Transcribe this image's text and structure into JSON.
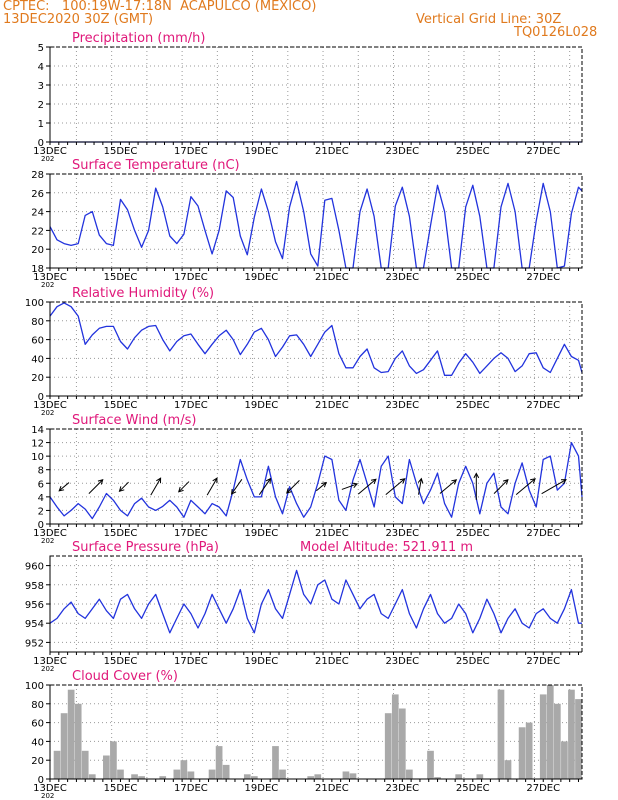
{
  "header": {
    "line1": "CPTEC:   100:19W-17:18N  ACAPULCO (MEXICO)",
    "line2": "13DEC2020 30Z (GMT)",
    "grid_note": "Vertical Grid Line: 30Z",
    "run_code": "TQ0126L028"
  },
  "colors": {
    "header": "#e07a1e",
    "title": "#e0187a",
    "line": "#2233dd",
    "cloud": "#a9a9a9",
    "arrow": "#000000"
  },
  "x_axis": {
    "tick_labels": [
      "13DEC",
      "15DEC",
      "17DEC",
      "19DEC",
      "21DEC",
      "23DEC",
      "25DEC",
      "27DEC"
    ],
    "clipped_label": "202"
  },
  "chart_data": [
    {
      "type": "line",
      "title": "Precipitation (mm/h)",
      "ylim": [
        0,
        5
      ],
      "yticks": [
        "0",
        "1",
        "2",
        "3",
        "4",
        "5"
      ],
      "x_days": [
        0,
        15.1
      ],
      "values": [
        0,
        0
      ]
    },
    {
      "type": "line",
      "title": "Surface Temperature (nC)",
      "ylim": [
        18,
        28
      ],
      "yticks": [
        "18",
        "20",
        "22",
        "24",
        "26",
        "28"
      ],
      "x_days": [
        0,
        0.2,
        0.4,
        0.6,
        0.8,
        1.0,
        1.2,
        1.4,
        1.6,
        1.8,
        2.0,
        2.2,
        2.4,
        2.6,
        2.8,
        3.0,
        3.2,
        3.4,
        3.6,
        3.8,
        4.0,
        4.2,
        4.4,
        4.6,
        4.8,
        5.0,
        5.2,
        5.4,
        5.6,
        5.8,
        6.0,
        6.2,
        6.4,
        6.6,
        6.8,
        7.0,
        7.2,
        7.4,
        7.6,
        7.8,
        8.0,
        8.2,
        8.4,
        8.6,
        8.8,
        9.0,
        9.2,
        9.4,
        9.6,
        9.8,
        10.0,
        10.2,
        10.4,
        10.6,
        10.8,
        11.0,
        11.2,
        11.4,
        11.6,
        11.8,
        12.0,
        12.2,
        12.4,
        12.6,
        12.8,
        13.0,
        13.2,
        13.4,
        13.6,
        13.8,
        14.0,
        14.2,
        14.4,
        14.6,
        14.8,
        15.0,
        15.1
      ],
      "values": [
        22.4,
        21.0,
        20.6,
        20.4,
        20.6,
        23.6,
        24.0,
        21.5,
        20.6,
        20.4,
        25.3,
        24.2,
        22.0,
        20.2,
        22.0,
        26.5,
        24.5,
        21.4,
        20.6,
        21.6,
        25.6,
        24.6,
        22.0,
        19.5,
        22.0,
        26.2,
        25.5,
        21.4,
        19.4,
        23.4,
        26.4,
        24.0,
        20.8,
        19.0,
        24.5,
        27.2,
        24.0,
        19.5,
        18.2,
        25.2,
        25.4,
        22.0,
        18.0,
        18.0,
        24.0,
        26.4,
        23.5,
        18.0,
        18.0,
        24.6,
        26.6,
        23.5,
        18.0,
        18.0,
        22.5,
        26.8,
        24.0,
        18.0,
        18.0,
        24.5,
        26.8,
        23.5,
        18.0,
        18.0,
        24.5,
        27.0,
        24.0,
        18.0,
        18.0,
        23.0,
        27.0,
        24.0,
        18.0,
        18.2,
        23.8,
        26.6,
        26.2
      ]
    },
    {
      "type": "line",
      "title": "Relative Humidity (%)",
      "ylim": [
        0,
        100
      ],
      "yticks": [
        "0",
        "20",
        "40",
        "60",
        "80",
        "100"
      ],
      "x_days": [
        0,
        0.2,
        0.4,
        0.6,
        0.8,
        1.0,
        1.2,
        1.4,
        1.6,
        1.8,
        2.0,
        2.2,
        2.4,
        2.6,
        2.8,
        3.0,
        3.2,
        3.4,
        3.6,
        3.8,
        4.0,
        4.2,
        4.4,
        4.6,
        4.8,
        5.0,
        5.2,
        5.4,
        5.6,
        5.8,
        6.0,
        6.2,
        6.4,
        6.6,
        6.8,
        7.0,
        7.2,
        7.4,
        7.6,
        7.8,
        8.0,
        8.2,
        8.4,
        8.6,
        8.8,
        9.0,
        9.2,
        9.4,
        9.6,
        9.8,
        10.0,
        10.2,
        10.4,
        10.6,
        10.8,
        11.0,
        11.2,
        11.4,
        11.6,
        11.8,
        12.0,
        12.2,
        12.4,
        12.6,
        12.8,
        13.0,
        13.2,
        13.4,
        13.6,
        13.8,
        14.0,
        14.2,
        14.4,
        14.6,
        14.8,
        15.0,
        15.1
      ],
      "values": [
        85,
        95,
        99,
        95,
        85,
        55,
        65,
        72,
        74,
        74,
        58,
        50,
        62,
        70,
        74,
        75,
        60,
        48,
        58,
        64,
        66,
        55,
        45,
        55,
        64,
        70,
        60,
        44,
        55,
        68,
        72,
        60,
        42,
        52,
        64,
        65,
        55,
        42,
        55,
        68,
        75,
        45,
        30,
        30,
        42,
        50,
        30,
        25,
        26,
        40,
        48,
        32,
        24,
        28,
        38,
        48,
        22,
        22,
        35,
        45,
        36,
        24,
        32,
        40,
        46,
        40,
        26,
        32,
        45,
        46,
        30,
        25,
        40,
        55,
        42,
        38,
        25
      ]
    },
    {
      "type": "line",
      "title": "Surface Wind (m/s)",
      "ylim": [
        0,
        14
      ],
      "yticks": [
        "0",
        "2",
        "4",
        "6",
        "8",
        "10",
        "12",
        "14"
      ],
      "x_days": [
        0,
        0.2,
        0.4,
        0.6,
        0.8,
        1.0,
        1.2,
        1.4,
        1.6,
        1.8,
        2.0,
        2.2,
        2.4,
        2.6,
        2.8,
        3.0,
        3.2,
        3.4,
        3.6,
        3.8,
        4.0,
        4.2,
        4.4,
        4.6,
        4.8,
        5.0,
        5.2,
        5.4,
        5.6,
        5.8,
        6.0,
        6.2,
        6.4,
        6.6,
        6.8,
        7.0,
        7.2,
        7.4,
        7.6,
        7.8,
        8.0,
        8.2,
        8.4,
        8.6,
        8.8,
        9.0,
        9.2,
        9.4,
        9.6,
        9.8,
        10.0,
        10.2,
        10.4,
        10.6,
        10.8,
        11.0,
        11.2,
        11.4,
        11.6,
        11.8,
        12.0,
        12.2,
        12.4,
        12.6,
        12.8,
        13.0,
        13.2,
        13.4,
        13.6,
        13.8,
        14.0,
        14.2,
        14.4,
        14.6,
        14.8,
        15.0,
        15.1
      ],
      "values": [
        4.0,
        2.5,
        1.2,
        2.0,
        3.0,
        2.2,
        0.8,
        2.5,
        4.5,
        3.5,
        2.0,
        1.2,
        3.0,
        3.8,
        2.5,
        2.0,
        2.6,
        3.5,
        2.5,
        1.0,
        3.5,
        2.5,
        1.5,
        3.0,
        2.5,
        1.2,
        5.0,
        9.5,
        6.5,
        4.0,
        4.0,
        8.5,
        4.0,
        1.5,
        5.5,
        3.0,
        1.0,
        2.5,
        6.0,
        10.0,
        9.5,
        3.5,
        2.0,
        6.5,
        9.5,
        6.0,
        2.5,
        8.5,
        10.0,
        4.0,
        3.0,
        9.5,
        6.0,
        3.0,
        5.0,
        7.5,
        3.0,
        1.0,
        6.0,
        8.5,
        6.0,
        1.5,
        6.0,
        7.5,
        2.5,
        1.5,
        6.0,
        9.0,
        5.0,
        2.5,
        9.5,
        10.0,
        5.0,
        6.0,
        12.0,
        10.0,
        4.0
      ],
      "arrows_days": [
        0.4,
        1.3,
        2.1,
        3.0,
        3.8,
        4.6,
        5.3,
        6.1,
        6.9,
        7.7,
        8.5,
        9.0,
        9.8,
        10.5,
        11.3,
        12.1,
        12.8,
        13.5,
        14.3
      ],
      "arrows_dir_deg": [
        220,
        45,
        225,
        60,
        225,
        60,
        235,
        55,
        225,
        40,
        20,
        40,
        40,
        80,
        40,
        90,
        45,
        40,
        30
      ],
      "arrows_speed": [
        2.0,
        4.0,
        2.0,
        4.0,
        2.5,
        4.0,
        3.5,
        4.0,
        3.5,
        2.0,
        3.0,
        5.0,
        5.5,
        3.0,
        4.5,
        6.0,
        4.0,
        5.5,
        6.5
      ]
    },
    {
      "type": "line",
      "title": "Surface Pressure (hPa)",
      "note": "Model Altitude: 521.911  m",
      "ylim": [
        951,
        961
      ],
      "yticks": [
        "952",
        "954",
        "956",
        "958",
        "960"
      ],
      "x_days": [
        0,
        0.2,
        0.4,
        0.6,
        0.8,
        1.0,
        1.2,
        1.4,
        1.6,
        1.8,
        2.0,
        2.2,
        2.4,
        2.6,
        2.8,
        3.0,
        3.2,
        3.4,
        3.6,
        3.8,
        4.0,
        4.2,
        4.4,
        4.6,
        4.8,
        5.0,
        5.2,
        5.4,
        5.6,
        5.8,
        6.0,
        6.2,
        6.4,
        6.6,
        6.8,
        7.0,
        7.2,
        7.4,
        7.6,
        7.8,
        8.0,
        8.2,
        8.4,
        8.6,
        8.8,
        9.0,
        9.2,
        9.4,
        9.6,
        9.8,
        10.0,
        10.2,
        10.4,
        10.6,
        10.8,
        11.0,
        11.2,
        11.4,
        11.6,
        11.8,
        12.0,
        12.2,
        12.4,
        12.6,
        12.8,
        13.0,
        13.2,
        13.4,
        13.6,
        13.8,
        14.0,
        14.2,
        14.4,
        14.6,
        14.8,
        15.0,
        15.1
      ],
      "values": [
        954.0,
        954.5,
        955.5,
        956.2,
        955.0,
        954.5,
        955.5,
        956.5,
        955.3,
        954.5,
        956.5,
        957.0,
        955.5,
        954.5,
        956.0,
        957.0,
        955.0,
        953.0,
        954.5,
        956.0,
        955.0,
        953.5,
        955.0,
        957.0,
        955.5,
        954.0,
        955.5,
        957.5,
        954.5,
        953.0,
        956.0,
        957.5,
        955.5,
        954.5,
        957.0,
        959.5,
        957.0,
        956.0,
        958.0,
        958.5,
        956.5,
        956.0,
        958.5,
        957.0,
        955.5,
        956.5,
        957.0,
        955.0,
        954.5,
        956.0,
        957.5,
        955.0,
        953.5,
        955.5,
        957.0,
        955.0,
        954.0,
        954.5,
        956.0,
        955.0,
        953.0,
        954.5,
        956.5,
        955.0,
        953.0,
        954.5,
        955.5,
        954.0,
        953.5,
        955.0,
        955.5,
        954.5,
        954.0,
        955.5,
        957.5,
        954.0,
        954.0
      ]
    },
    {
      "type": "area",
      "title": "Cloud Cover (%)",
      "ylim": [
        0,
        100
      ],
      "yticks": [
        "0",
        "20",
        "40",
        "60",
        "80",
        "100"
      ],
      "x_days": [
        0,
        0.2,
        0.4,
        0.6,
        0.8,
        1.0,
        1.2,
        1.4,
        1.6,
        1.8,
        2.0,
        2.2,
        2.4,
        2.6,
        2.8,
        3.0,
        3.2,
        3.4,
        3.6,
        3.8,
        4.0,
        4.2,
        4.4,
        4.6,
        4.8,
        5.0,
        5.2,
        5.4,
        5.6,
        5.8,
        6.0,
        6.2,
        6.4,
        6.6,
        6.8,
        7.0,
        7.2,
        7.4,
        7.6,
        7.8,
        8.0,
        8.2,
        8.4,
        8.6,
        8.8,
        9.0,
        9.2,
        9.4,
        9.6,
        9.8,
        10.0,
        10.2,
        10.4,
        10.6,
        10.8,
        11.0,
        11.2,
        11.4,
        11.6,
        11.8,
        12.0,
        12.2,
        12.4,
        12.6,
        12.8,
        13.0,
        13.2,
        13.4,
        13.6,
        13.8,
        14.0,
        14.2,
        14.4,
        14.6,
        14.8,
        15.0,
        15.1
      ],
      "values": [
        0,
        30,
        70,
        95,
        80,
        30,
        5,
        0,
        25,
        40,
        10,
        0,
        5,
        3,
        0,
        0,
        3,
        0,
        10,
        20,
        8,
        0,
        0,
        10,
        35,
        15,
        0,
        0,
        5,
        3,
        0,
        0,
        35,
        10,
        0,
        0,
        0,
        3,
        5,
        0,
        0,
        0,
        8,
        6,
        0,
        0,
        0,
        0,
        70,
        90,
        75,
        10,
        0,
        0,
        30,
        2,
        0,
        0,
        5,
        0,
        0,
        5,
        0,
        0,
        95,
        20,
        0,
        55,
        60,
        0,
        90,
        100,
        80,
        40,
        95,
        85,
        0
      ]
    }
  ]
}
